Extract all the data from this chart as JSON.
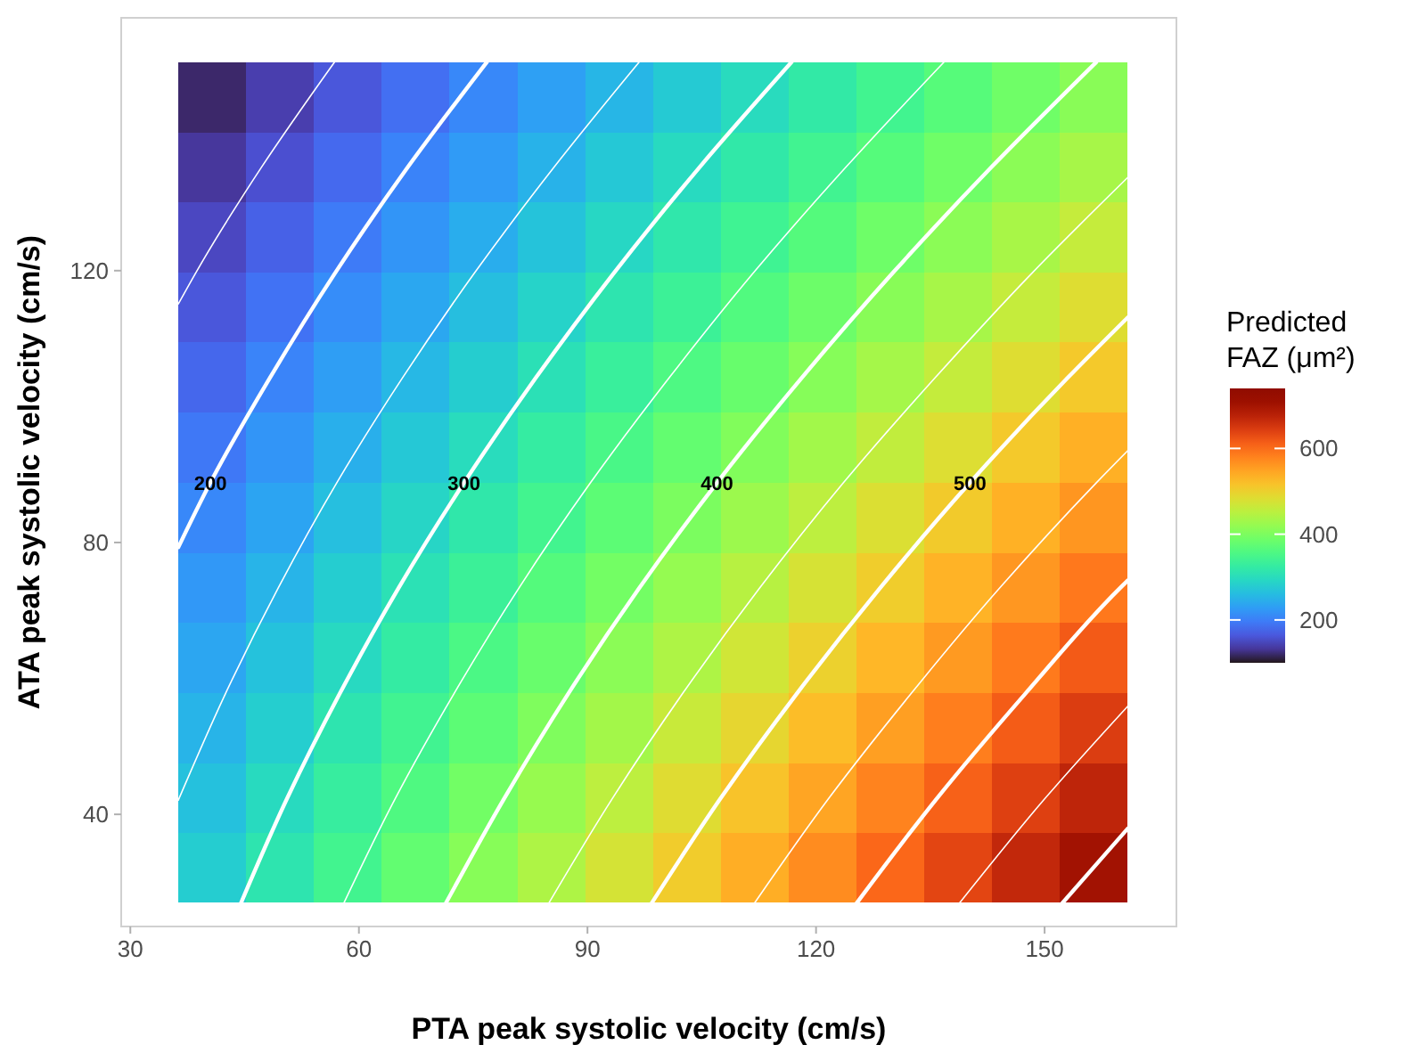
{
  "chart_data": {
    "type": "heatmap",
    "xlabel": "PTA peak systolic velocity (cm/s)",
    "ylabel": "ATA peak systolic velocity (cm/s)",
    "clabel": "Predicted FAZ (μm²)",
    "x": [
      40.75,
      49.65,
      58.55,
      67.45,
      76.35,
      85.25,
      94.15,
      103.05,
      111.95,
      120.85,
      129.75,
      138.65,
      147.55,
      156.45
    ],
    "y": [
      145.5,
      135.2,
      124.9,
      114.6,
      104.3,
      93.9,
      83.6,
      73.3,
      63.0,
      52.7,
      42.3,
      32.1
    ],
    "cells": [
      [
        118,
        140,
        163,
        185,
        208,
        231,
        253,
        276,
        298,
        321,
        343,
        366,
        389,
        411
      ],
      [
        133,
        156,
        180,
        203,
        226,
        249,
        273,
        296,
        319,
        342,
        365,
        389,
        412,
        435
      ],
      [
        148,
        172,
        196,
        220,
        244,
        268,
        292,
        316,
        340,
        364,
        388,
        412,
        436,
        460
      ],
      [
        163,
        188,
        213,
        238,
        262,
        287,
        312,
        336,
        361,
        386,
        410,
        435,
        460,
        484
      ],
      [
        178,
        204,
        229,
        255,
        280,
        306,
        331,
        357,
        382,
        408,
        433,
        459,
        484,
        510
      ],
      [
        193,
        220,
        246,
        273,
        299,
        325,
        352,
        378,
        404,
        431,
        457,
        483,
        510,
        536
      ],
      [
        208,
        235,
        263,
        290,
        317,
        344,
        372,
        399,
        426,
        453,
        481,
        508,
        535,
        562
      ],
      [
        223,
        251,
        279,
        307,
        335,
        364,
        392,
        420,
        448,
        476,
        505,
        533,
        561,
        589
      ],
      [
        237,
        266,
        295,
        324,
        354,
        383,
        412,
        441,
        470,
        500,
        529,
        558,
        587,
        616
      ],
      [
        251,
        281,
        312,
        342,
        372,
        402,
        432,
        463,
        493,
        523,
        553,
        584,
        614,
        644
      ],
      [
        265,
        297,
        328,
        359,
        391,
        422,
        453,
        485,
        516,
        547,
        579,
        610,
        641,
        672
      ],
      [
        279,
        312,
        344,
        377,
        409,
        441,
        474,
        506,
        539,
        571,
        604,
        636,
        668,
        701
      ]
    ],
    "clim": [
      100,
      740
    ],
    "cticks": [
      200,
      400,
      600
    ],
    "xlim": [
      28.8,
      167.3
    ],
    "ylim": [
      23.5,
      157.2
    ],
    "xticks": [
      30,
      60,
      90,
      120,
      150
    ],
    "yticks": [
      40,
      80,
      120
    ],
    "grid": false,
    "series": [
      {
        "type": "line",
        "color": "#ffffff",
        "x": [
          36.3,
          38.6,
          47.2,
          56.8
        ],
        "values": [
          115.1,
          119.7,
          135.2,
          150.7
        ]
      },
      {
        "type": "line",
        "name": "200",
        "color": "#ffffff",
        "x": [
          36.3,
          40.5,
          48.3,
          56.9,
          66.4,
          76.8
        ],
        "values": [
          79.3,
          88.8,
          104.2,
          119.7,
          135.2,
          150.7
        ]
      },
      {
        "type": "line",
        "color": "#ffffff",
        "x": [
          36.3,
          42.5,
          49.4,
          57.1,
          65.7,
          75.2,
          85.6,
          96.8
        ],
        "values": [
          42.1,
          57.8,
          73.3,
          88.8,
          104.2,
          119.7,
          135.2,
          150.7
        ]
      },
      {
        "type": "line",
        "name": "300",
        "color": "#ffffff",
        "x": [
          44.5,
          50.6,
          57.5,
          65.2,
          73.8,
          83.2,
          93.5,
          104.7,
          116.8
        ],
        "values": [
          26.9,
          42.4,
          57.8,
          73.3,
          88.8,
          104.2,
          119.7,
          135.2,
          150.7
        ]
      },
      {
        "type": "line",
        "color": "#ffffff",
        "x": [
          58.0,
          64.8,
          72.5,
          81.0,
          90.4,
          100.7,
          111.8,
          123.9,
          136.8
        ],
        "values": [
          26.9,
          42.4,
          57.8,
          73.3,
          88.8,
          104.2,
          119.7,
          135.2,
          150.7
        ]
      },
      {
        "type": "line",
        "name": "400",
        "color": "#ffffff",
        "x": [
          71.4,
          79.1,
          87.5,
          96.8,
          107.0,
          118.1,
          130.1,
          143.0,
          156.8
        ],
        "values": [
          26.9,
          42.4,
          57.8,
          73.3,
          88.8,
          104.2,
          119.7,
          135.2,
          150.7
        ]
      },
      {
        "type": "line",
        "color": "#ffffff",
        "x": [
          84.9,
          93.3,
          102.5,
          112.6,
          123.6,
          135.6,
          148.4,
          160.9
        ],
        "values": [
          26.9,
          42.4,
          57.8,
          73.3,
          88.8,
          104.2,
          119.7,
          133.7
        ]
      },
      {
        "type": "line",
        "name": "500",
        "color": "#ffffff",
        "x": [
          98.4,
          107.5,
          117.5,
          128.4,
          140.2,
          153.0,
          160.9
        ],
        "values": [
          26.9,
          42.4,
          57.8,
          73.3,
          88.8,
          104.2,
          113.1
        ]
      },
      {
        "type": "line",
        "color": "#ffffff",
        "x": [
          111.9,
          121.7,
          132.5,
          144.1,
          156.8,
          160.9
        ],
        "values": [
          26.9,
          42.4,
          57.8,
          73.3,
          88.8,
          93.5
        ]
      },
      {
        "type": "line",
        "color": "#ffffff",
        "x": [
          125.3,
          135.9,
          147.5,
          159.9,
          160.9
        ],
        "values": [
          26.9,
          42.4,
          57.8,
          73.3,
          74.4
        ]
      },
      {
        "type": "line",
        "color": "#ffffff",
        "x": [
          138.8,
          150.1,
          160.9
        ],
        "values": [
          26.9,
          42.4,
          55.9
        ]
      },
      {
        "type": "line",
        "color": "#ffffff",
        "x": [
          152.3,
          160.9
        ],
        "values": [
          26.9,
          37.9
        ]
      }
    ]
  }
}
